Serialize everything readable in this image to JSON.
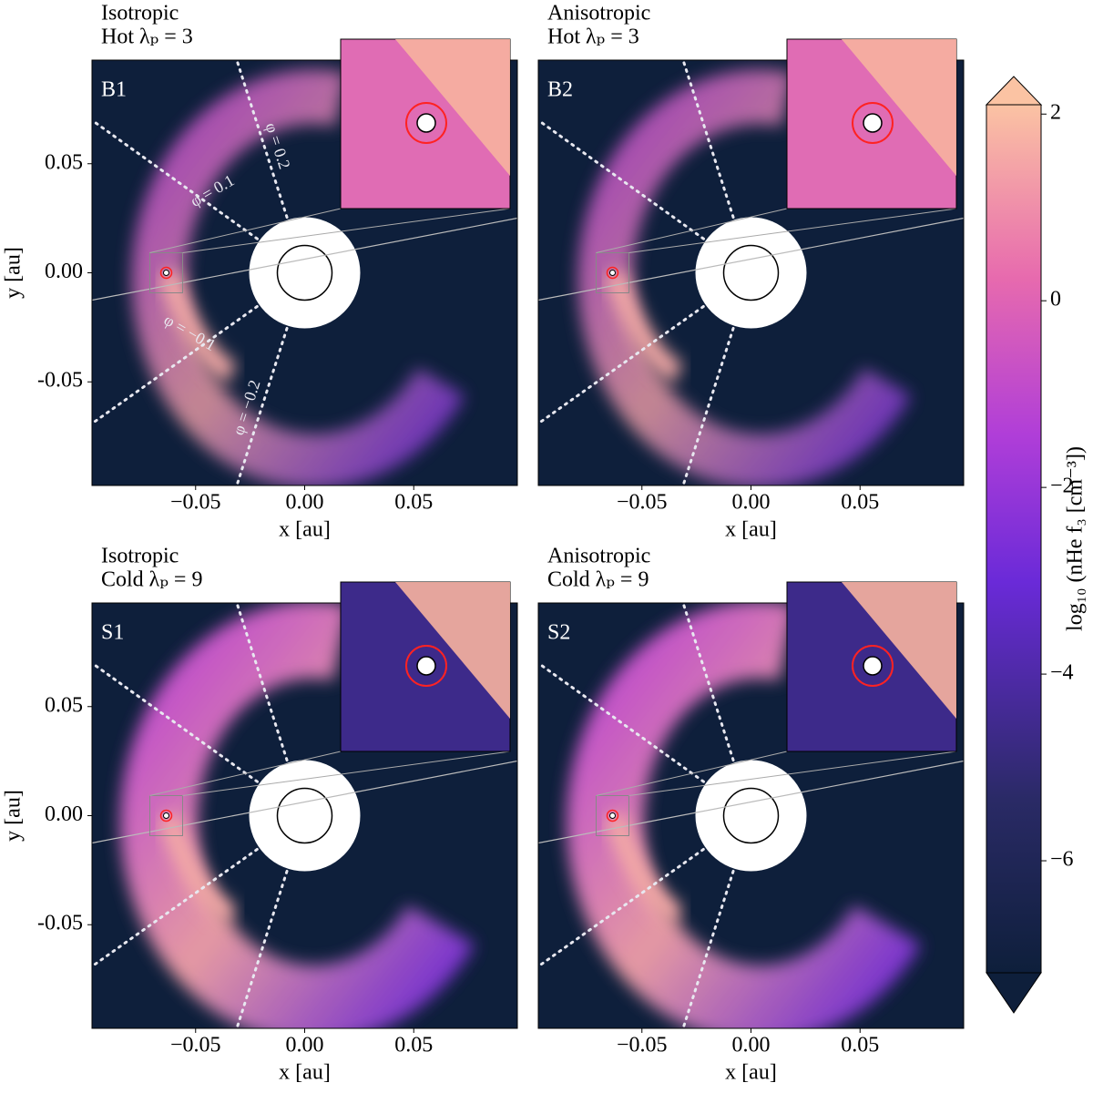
{
  "chart_data": [
    {
      "type": "heatmap",
      "title": [
        "Isotropic",
        "Hot λₚ = 3"
      ],
      "label": "B1",
      "xlabel": "x [au]",
      "ylabel": "y [au]",
      "xlim": [
        -0.0975,
        0.0975
      ],
      "ylim": [
        -0.0975,
        0.0975
      ],
      "xticks": [
        {
          "value": -0.05,
          "label": "−0.05"
        },
        {
          "value": 0,
          "label": "0.00"
        },
        {
          "value": 0.05,
          "label": "0.05"
        }
      ],
      "yticks": [
        {
          "value": 0.05,
          "label": "0.05"
        },
        {
          "value": 0,
          "label": "0.00"
        },
        {
          "value": -0.05,
          "label": "-0.05"
        }
      ],
      "annotations": [
        "φ = 0.1",
        "φ = 0.2",
        "φ = −0.1",
        "φ = −0.2"
      ]
    },
    {
      "type": "heatmap",
      "title": [
        "Anisotropic",
        "Hot λₚ = 3"
      ],
      "label": "B2",
      "xlabel": "x [au]",
      "xlim": [
        -0.0975,
        0.0975
      ],
      "ylim": [
        -0.0975,
        0.0975
      ],
      "xticks": [
        {
          "value": -0.05,
          "label": "−0.05"
        },
        {
          "value": 0,
          "label": "0.00"
        },
        {
          "value": 0.05,
          "label": "0.05"
        }
      ]
    },
    {
      "type": "heatmap",
      "title": [
        "Isotropic",
        "Cold λₚ = 9"
      ],
      "label": "S1",
      "xlabel": "x [au]",
      "ylabel": "y [au]",
      "xlim": [
        -0.0975,
        0.0975
      ],
      "ylim": [
        -0.0975,
        0.0975
      ],
      "xticks": [
        {
          "value": -0.05,
          "label": "−0.05"
        },
        {
          "value": 0,
          "label": "0.00"
        },
        {
          "value": 0.05,
          "label": "0.05"
        }
      ],
      "yticks": [
        {
          "value": 0.05,
          "label": "0.05"
        },
        {
          "value": 0,
          "label": "0.00"
        },
        {
          "value": -0.05,
          "label": "-0.05"
        }
      ]
    },
    {
      "type": "heatmap",
      "title": [
        "Anisotropic",
        "Cold λₚ = 9"
      ],
      "label": "S2",
      "xlabel": "x [au]",
      "xlim": [
        -0.0975,
        0.0975
      ],
      "ylim": [
        -0.0975,
        0.0975
      ],
      "xticks": [
        {
          "value": -0.05,
          "label": "−0.05"
        },
        {
          "value": 0,
          "label": "0.00"
        },
        {
          "value": 0.05,
          "label": "0.05"
        }
      ]
    }
  ],
  "colorbar": {
    "label": "log₁₀ (nHe f₃ [cm⁻³])",
    "clim": [
      -7.2,
      2.1
    ],
    "ticks": [
      2,
      0,
      {
        "value": -2,
        "label": "−2"
      },
      {
        "value": -4,
        "label": "−4"
      },
      {
        "value": -6,
        "label": "−6"
      }
    ]
  }
}
